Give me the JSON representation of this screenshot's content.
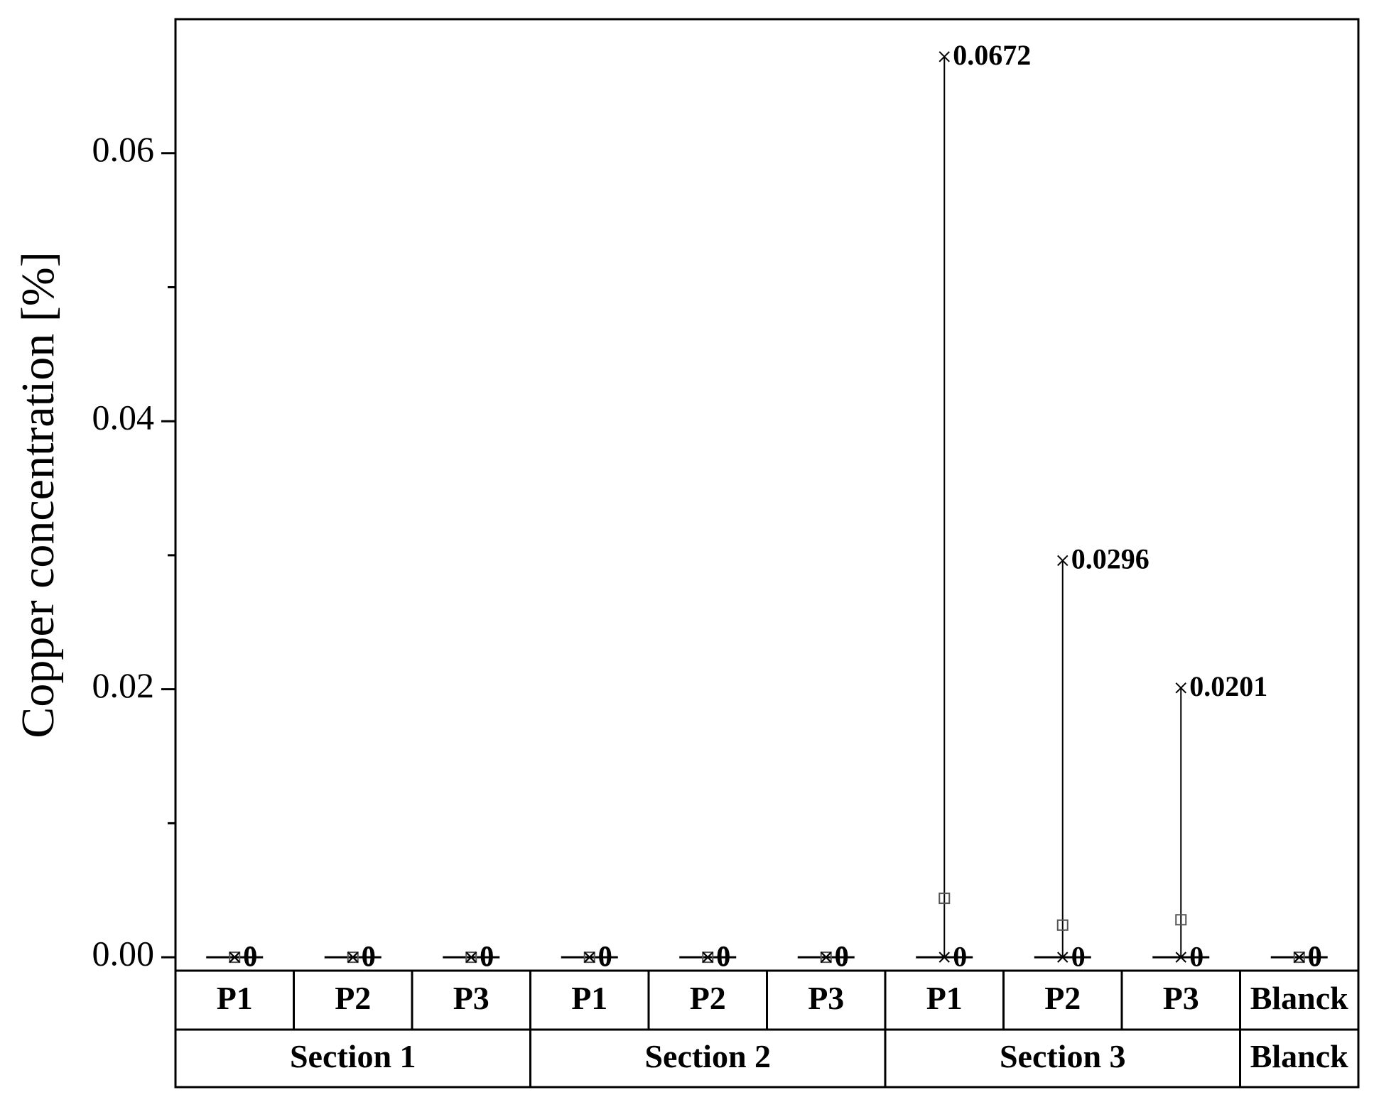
{
  "chart_data": {
    "type": "range",
    "y_label": "Copper concentration [%]",
    "groups": [
      {
        "name": "Section 1",
        "categories": [
          "P1",
          "P2",
          "P3"
        ]
      },
      {
        "name": "Section 2",
        "categories": [
          "P1",
          "P2",
          "P3"
        ]
      },
      {
        "name": "Section 3",
        "categories": [
          "P1",
          "P2",
          "P3"
        ]
      },
      {
        "name": "Blanck",
        "categories": [
          "Blanck"
        ]
      }
    ],
    "max": [
      0,
      0,
      0,
      0,
      0,
      0,
      0.0672,
      0.0296,
      0.0201,
      0
    ],
    "min": [
      0,
      0,
      0,
      0,
      0,
      0,
      0,
      0,
      0,
      0
    ],
    "mean": [
      0,
      0,
      0,
      0,
      0,
      0,
      0.0044,
      0.0024,
      0.0028,
      0
    ],
    "color": "#000000",
    "mean_color": "#555555",
    "ylim": [
      -0.001,
      0.07
    ],
    "yticks": [
      {
        "value": 0,
        "label": "0.00"
      },
      {
        "value": 0.02,
        "label": "0.02"
      },
      {
        "value": 0.04,
        "label": "0.04"
      },
      {
        "value": 0.06,
        "label": "0.06"
      }
    ],
    "yminor": [
      0.01,
      0.03,
      0.05
    ]
  }
}
